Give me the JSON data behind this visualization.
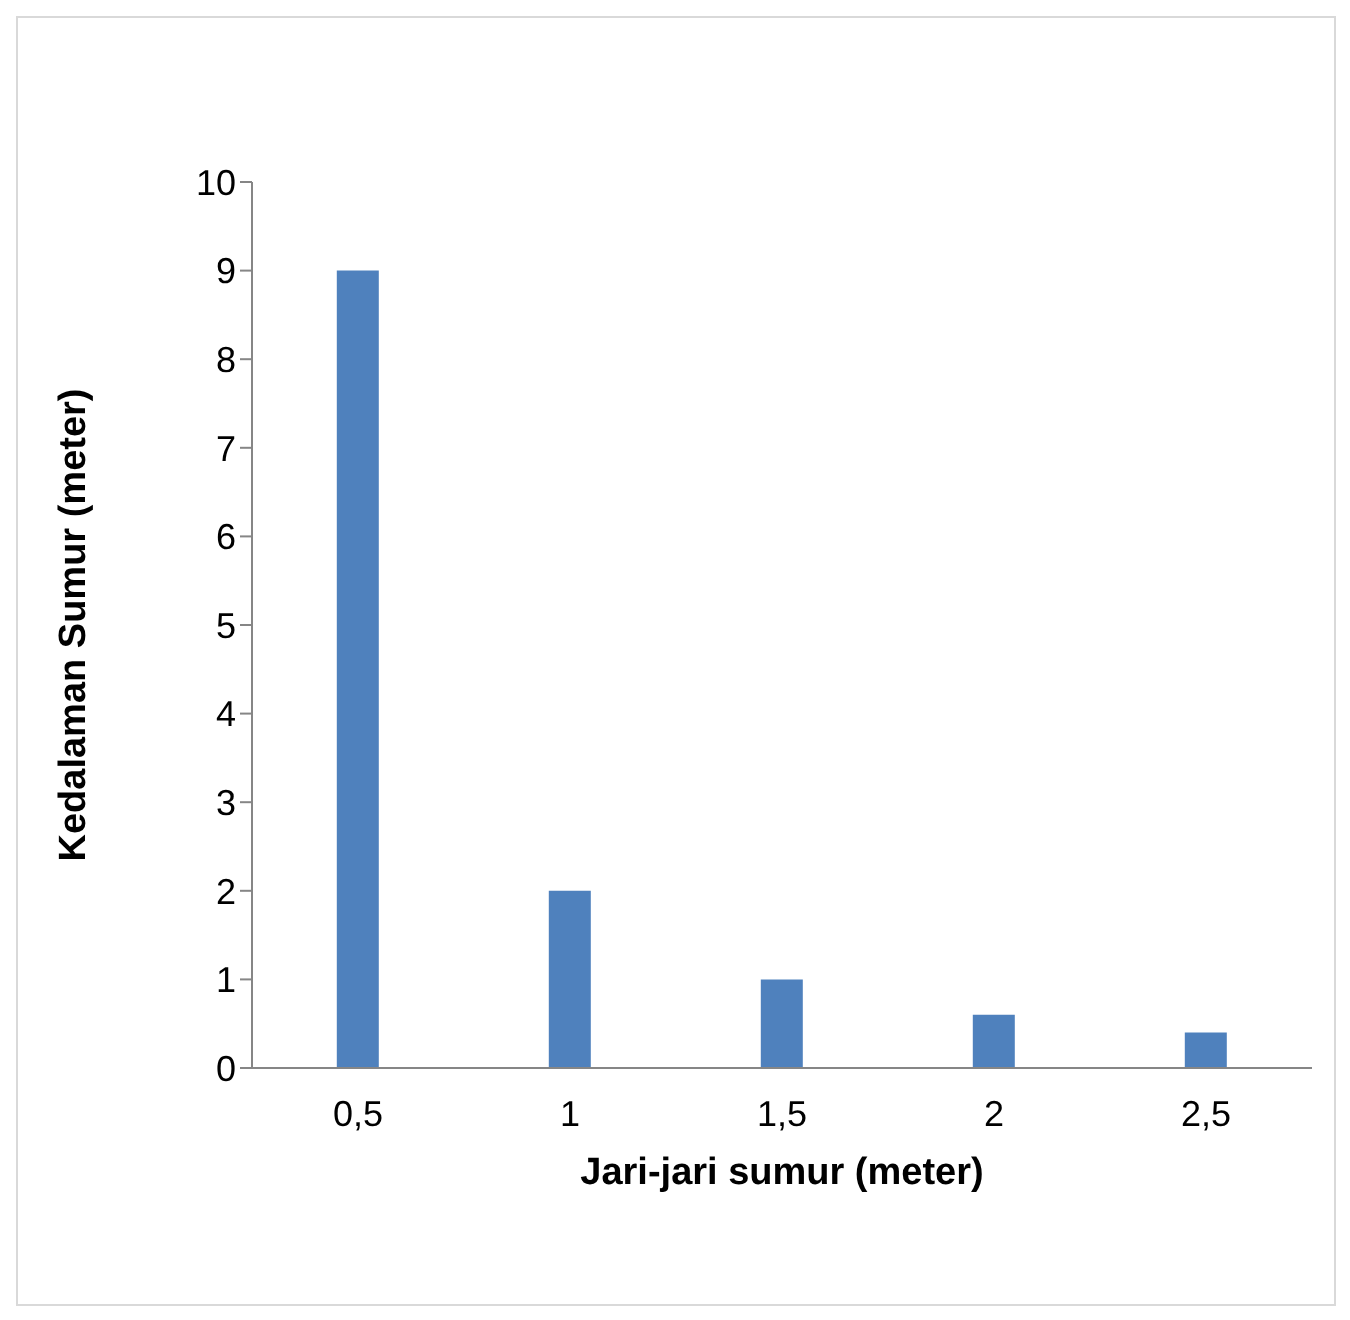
{
  "chart_data": {
    "type": "bar",
    "xlabel": "Jari-jari sumur (meter)",
    "ylabel": "Kedalaman Sumur (meter)",
    "categories": [
      "0,5",
      "1",
      "1,5",
      "2",
      "2,5"
    ],
    "values": [
      9,
      2,
      1,
      0.6,
      0.4
    ],
    "color": "#4f81bd",
    "ylim": [
      0,
      10
    ],
    "yticks": [
      0,
      1,
      2,
      3,
      4,
      5,
      6,
      7,
      8,
      9,
      10
    ]
  }
}
